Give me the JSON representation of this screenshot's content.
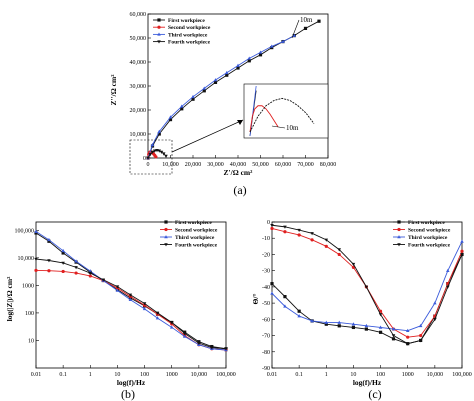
{
  "colors": {
    "First workpiece": "#111111",
    "Second workpiece": "#e02020",
    "Third workpiece": "#3b5bdb",
    "Fourth workpiece": "#111111"
  },
  "markers": {
    "First workpiece": "square",
    "Second workpiece": "circle",
    "Third workpiece": "triangle-up",
    "Fourth workpiece": "triangle-down"
  },
  "chart_data": [
    {
      "id": "a",
      "type": "scatter",
      "panel_label": "(a)",
      "xlabel": "Z'/Ω cm²",
      "ylabel": "Z''/Ω cm²",
      "xlim": [
        0,
        80000
      ],
      "ylim": [
        0,
        60000
      ],
      "xticks": [
        0,
        10000,
        20000,
        30000,
        40000,
        50000,
        60000,
        70000,
        80000
      ],
      "xtick_labels": [
        "0",
        "10,000",
        "20,000",
        "30,000",
        "40,000",
        "50,000",
        "60,000",
        "70,000",
        "80,000"
      ],
      "yticks": [
        0,
        10000,
        20000,
        30000,
        40000,
        50000,
        60000
      ],
      "ytick_labels": [
        "0",
        "10,000",
        "20,000",
        "30,000",
        "40,000",
        "50,000",
        "60,000"
      ],
      "legend": [
        "First workpiece",
        "Second workpiece",
        "Third workpiece",
        "Fourth workpiece"
      ],
      "legend_position": "top-left",
      "annotations": [
        "10m",
        "10m"
      ],
      "series": [
        {
          "name": "First workpiece",
          "x": [
            0,
            2000,
            5000,
            10000,
            15000,
            20000,
            25000,
            30000,
            35000,
            40000,
            45000,
            50000,
            55000,
            60000,
            65000,
            70000,
            76000
          ],
          "y": [
            0,
            5000,
            10000,
            16000,
            20500,
            24500,
            28000,
            31500,
            34500,
            37500,
            40500,
            43000,
            46000,
            48500,
            51000,
            54000,
            57000
          ]
        },
        {
          "name": "Second workpiece",
          "x": [
            0,
            300,
            600,
            1000,
            1500,
            2000,
            2500,
            3000,
            3500
          ],
          "y": [
            0,
            1500,
            2200,
            2500,
            2500,
            2200,
            1700,
            1100,
            500
          ]
        },
        {
          "name": "Third workpiece",
          "x": [
            0,
            2000,
            5000,
            10000,
            15000,
            20000,
            25000,
            30000,
            35000,
            40000,
            45000,
            50000,
            55000,
            60000,
            65000
          ],
          "y": [
            0,
            5500,
            11000,
            17000,
            21500,
            25500,
            29000,
            32500,
            35500,
            38500,
            41500,
            44000,
            46500,
            48500,
            51000
          ]
        },
        {
          "name": "Fourth workpiece",
          "x": [
            0,
            1000,
            2000,
            3000,
            4000,
            5000,
            6000,
            7000,
            8000
          ],
          "y": [
            0,
            1500,
            2500,
            3000,
            3200,
            3000,
            2500,
            1800,
            800
          ]
        }
      ]
    },
    {
      "id": "b",
      "type": "scatter",
      "panel_label": "(b)",
      "xlabel": "log(f)/Hz",
      "ylabel": "log(|Z|)/Ω cm²",
      "xscale": "log",
      "yscale": "log",
      "xlim": [
        0.01,
        100000
      ],
      "ylim": [
        1,
        200000
      ],
      "xticks": [
        0.01,
        0.1,
        1,
        10,
        100,
        1000,
        10000,
        100000
      ],
      "xtick_labels": [
        "0.01",
        "0.1",
        "1",
        "10",
        "100",
        "1000",
        "10,000",
        "100,000"
      ],
      "yticks": [
        10,
        100,
        1000,
        10000,
        100000
      ],
      "ytick_labels": [
        "10",
        "100",
        "1000",
        "10,000",
        "100,000"
      ],
      "legend": [
        "First workpiece",
        "Second workpiece",
        "Third workpiece",
        "Fourth workpiece"
      ],
      "legend_position": "top-right",
      "series": [
        {
          "name": "First workpiece",
          "x": [
            0.01,
            0.03,
            0.1,
            0.3,
            1,
            3,
            10,
            30,
            100,
            300,
            1000,
            3000,
            10000,
            30000,
            100000
          ],
          "y": [
            80000,
            40000,
            15000,
            7000,
            3000,
            1500,
            700,
            350,
            180,
            90,
            45,
            20,
            9,
            6,
            5
          ]
        },
        {
          "name": "Second workpiece",
          "x": [
            0.01,
            0.03,
            0.1,
            0.3,
            1,
            3,
            10,
            30,
            100,
            300,
            1000,
            3000,
            10000,
            30000,
            100000
          ],
          "y": [
            3500,
            3400,
            3200,
            2800,
            2200,
            1500,
            800,
            400,
            190,
            90,
            40,
            15,
            7,
            5,
            4.5
          ]
        },
        {
          "name": "Third workpiece",
          "x": [
            0.01,
            0.03,
            0.1,
            0.3,
            1,
            3,
            10,
            30,
            100,
            300,
            1000,
            3000,
            10000,
            30000,
            100000
          ],
          "y": [
            90000,
            45000,
            18000,
            7500,
            3300,
            1500,
            650,
            300,
            140,
            65,
            30,
            14,
            7,
            5,
            4.5
          ]
        },
        {
          "name": "Fourth workpiece",
          "x": [
            0.01,
            0.03,
            0.1,
            0.3,
            1,
            3,
            10,
            30,
            100,
            300,
            1000,
            3000,
            10000,
            30000,
            100000
          ],
          "y": [
            9000,
            8000,
            6500,
            4500,
            2800,
            1600,
            900,
            450,
            220,
            100,
            45,
            18,
            8,
            5.5,
            5
          ]
        }
      ]
    },
    {
      "id": "c",
      "type": "scatter",
      "panel_label": "(c)",
      "xlabel": "log(f)/Hz",
      "ylabel": "Θ/°",
      "xscale": "log",
      "xlim": [
        0.01,
        100000
      ],
      "ylim": [
        -90,
        0
      ],
      "xticks": [
        0.01,
        0.1,
        1,
        10,
        100,
        1000,
        10000,
        100000
      ],
      "xtick_labels": [
        "0.01",
        "0.1",
        "1",
        "10",
        "100",
        "1000",
        "10,000",
        "100,000"
      ],
      "yticks": [
        0,
        -10,
        -20,
        -30,
        -40,
        -50,
        -60,
        -70,
        -80,
        -90
      ],
      "ytick_labels": [
        "0",
        "-10",
        "-20",
        "-30",
        "-40",
        "-50",
        "-60",
        "-70",
        "-80",
        "-90"
      ],
      "legend": [
        "First workpiece",
        "Second workpiece",
        "Third workpiece",
        "Fourth workpiece"
      ],
      "legend_position": "top-right",
      "series": [
        {
          "name": "First workpiece",
          "x": [
            0.01,
            0.03,
            0.1,
            0.3,
            1,
            3,
            10,
            30,
            100,
            300,
            1000,
            3000,
            10000,
            30000,
            100000
          ],
          "y": [
            -38,
            -46,
            -55,
            -61,
            -63,
            -64,
            -65,
            -66,
            -68,
            -72,
            -75,
            -73,
            -58,
            -38,
            -20
          ]
        },
        {
          "name": "Second workpiece",
          "x": [
            0.01,
            0.03,
            0.1,
            0.3,
            1,
            3,
            10,
            30,
            100,
            300,
            1000,
            3000,
            10000,
            30000,
            100000
          ],
          "y": [
            -4,
            -6,
            -8,
            -11,
            -15,
            -20,
            -28,
            -40,
            -55,
            -66,
            -71,
            -70,
            -58,
            -38,
            -18
          ]
        },
        {
          "name": "Third workpiece",
          "x": [
            0.01,
            0.03,
            0.1,
            0.3,
            1,
            3,
            10,
            30,
            100,
            300,
            1000,
            3000,
            10000,
            30000,
            100000
          ],
          "y": [
            -44,
            -52,
            -58,
            -61,
            -62,
            -62,
            -63,
            -64,
            -65,
            -66,
            -67,
            -64,
            -50,
            -30,
            -12
          ]
        },
        {
          "name": "Fourth workpiece",
          "x": [
            0.01,
            0.03,
            0.1,
            0.3,
            1,
            3,
            10,
            30,
            100,
            300,
            1000,
            3000,
            10000,
            30000,
            100000
          ],
          "y": [
            -2,
            -3,
            -5,
            -7,
            -11,
            -17,
            -26,
            -40,
            -57,
            -70,
            -75,
            -73,
            -60,
            -40,
            -20
          ]
        }
      ]
    }
  ]
}
